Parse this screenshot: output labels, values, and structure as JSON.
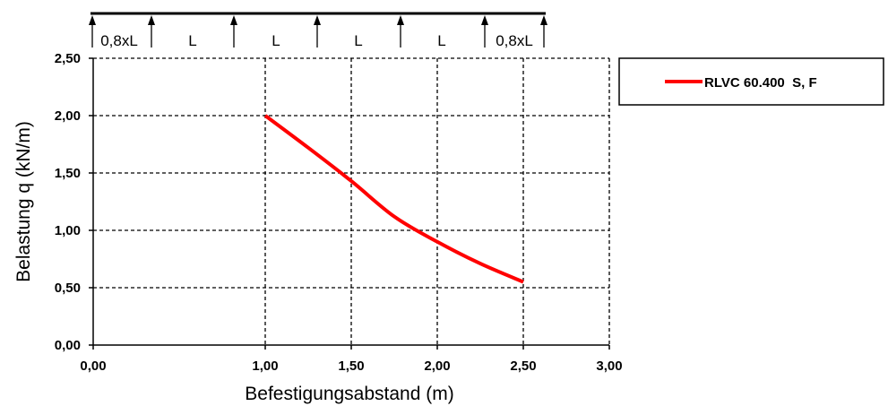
{
  "beam": {
    "span_labels": [
      "0,8xL",
      "L",
      "L",
      "L",
      "L",
      "0,8xL"
    ]
  },
  "chart_data": {
    "type": "line",
    "xlabel": "Befestigungsabstand (m)",
    "ylabel": "Belastung q (kN/m)",
    "xlim": [
      0,
      3
    ],
    "ylim": [
      0,
      2.5
    ],
    "x_ticks": [
      "0,00",
      "1,00",
      "1,50",
      "2,00",
      "2,50",
      "3,00"
    ],
    "x_tick_values": [
      0,
      1,
      1.5,
      2,
      2.5,
      3
    ],
    "y_ticks": [
      "0,00",
      "0,50",
      "1,00",
      "1,50",
      "2,00",
      "2,50"
    ],
    "y_tick_values": [
      0,
      0.5,
      1,
      1.5,
      2,
      2.5
    ],
    "grid": true,
    "legend_position": "right",
    "series": [
      {
        "name": "RLVC 60.400  S, F",
        "color": "#ff0000",
        "x": [
          1.0,
          1.25,
          1.5,
          1.75,
          2.0,
          2.25,
          2.5
        ],
        "y": [
          2.0,
          1.72,
          1.43,
          1.12,
          0.9,
          0.71,
          0.55
        ]
      }
    ]
  }
}
